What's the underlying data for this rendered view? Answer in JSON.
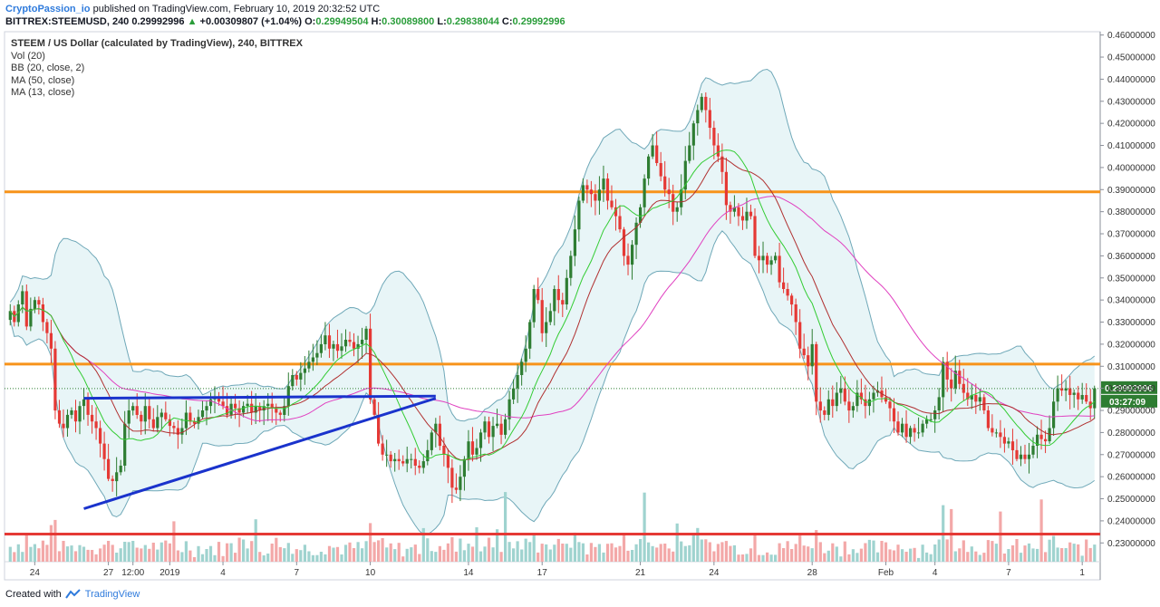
{
  "header": {
    "author": "CryptoPassion_io",
    "published": "published on TradingView.com, February 10, 2019 20:32:52 UTC"
  },
  "ohlc": {
    "symbol": "BITTREX:STEEMUSD, 240",
    "last": "0.29992996",
    "change_arrow": "▲",
    "change": "+0.00309807 (+1.04%)",
    "o_label": "O:",
    "o": "0.29949504",
    "h_label": "H:",
    "h": "0.30089800",
    "l_label": "L:",
    "l": "0.29838044",
    "c_label": "C:",
    "c": "0.29992996"
  },
  "indicators": {
    "title": "STEEM / US Dollar (calculated by TradingView), 240, BITTREX",
    "list": [
      "Vol (20)",
      "BB (20, close, 2)",
      "MA (50, close)",
      "MA (13, close)"
    ]
  },
  "footer": {
    "created": "Created with",
    "brand": "TradingView"
  },
  "colors": {
    "up": "#2e7d32",
    "down": "#e53935",
    "bb": "#6fa8b8",
    "bb_fill": "#e8f5f7",
    "ma50": "#e040c0",
    "ma13": "#33cc33",
    "ma_mid": "#b03030",
    "support": "#f7931a",
    "resistance_low": "#e53935",
    "trend": "#1a33cc",
    "price_tag": "#2e7d32"
  },
  "chart_data": {
    "type": "candlestick",
    "ylim": [
      0.2215,
      0.4615
    ],
    "y_ticks": [
      "0.46000000",
      "0.45000000",
      "0.44000000",
      "0.43000000",
      "0.42000000",
      "0.41000000",
      "0.40000000",
      "0.39000000",
      "0.38000000",
      "0.37000000",
      "0.36000000",
      "0.35000000",
      "0.34000000",
      "0.33000000",
      "0.32000000",
      "0.31000000",
      "0.30000000",
      "0.29000000",
      "0.28000000",
      "0.27000000",
      "0.26000000",
      "0.25000000",
      "0.24000000",
      "0.23000000"
    ],
    "x_ticks": [
      {
        "label": "24",
        "i": 6
      },
      {
        "label": "27",
        "i": 24
      },
      {
        "label": "12:00",
        "i": 30
      },
      {
        "label": "2019",
        "i": 39
      },
      {
        "label": "4",
        "i": 52
      },
      {
        "label": "7",
        "i": 70
      },
      {
        "label": "10",
        "i": 88
      },
      {
        "label": "14",
        "i": 112
      },
      {
        "label": "17",
        "i": 130
      },
      {
        "label": "21",
        "i": 154
      },
      {
        "label": "24",
        "i": 172
      },
      {
        "label": "28",
        "i": 196
      },
      {
        "label": "Feb",
        "i": 214
      },
      {
        "label": "4",
        "i": 226
      },
      {
        "label": "7",
        "i": 244
      },
      {
        "label": "1",
        "i": 262
      }
    ],
    "current_price_tag": "0.29992996",
    "countdown_tag": "03:27:09",
    "current_price": 0.29993,
    "horizontal_lines": [
      {
        "name": "resistance",
        "price": 0.389,
        "color": "support"
      },
      {
        "name": "mid",
        "price": 0.311,
        "color": "support"
      },
      {
        "name": "low",
        "price": 0.234,
        "color": "resistance_low"
      }
    ],
    "trend_lines": [
      {
        "from": [
          18,
          0.2455
        ],
        "to": [
          104,
          0.2955
        ]
      },
      {
        "from": [
          18,
          0.2955
        ],
        "to": [
          104,
          0.2965
        ]
      }
    ],
    "closes": [
      0.335,
      0.33,
      0.338,
      0.344,
      0.328,
      0.336,
      0.34,
      0.338,
      0.33,
      0.325,
      0.318,
      0.29,
      0.284,
      0.282,
      0.288,
      0.29,
      0.285,
      0.292,
      0.295,
      0.288,
      0.285,
      0.282,
      0.275,
      0.268,
      0.259,
      0.258,
      0.262,
      0.265,
      0.284,
      0.29,
      0.292,
      0.288,
      0.285,
      0.292,
      0.286,
      0.282,
      0.287,
      0.289,
      0.286,
      0.283,
      0.282,
      0.279,
      0.282,
      0.289,
      0.285,
      0.284,
      0.287,
      0.29,
      0.292,
      0.295,
      0.296,
      0.294,
      0.292,
      0.288,
      0.293,
      0.291,
      0.289,
      0.292,
      0.293,
      0.289,
      0.292,
      0.29,
      0.292,
      0.293,
      0.291,
      0.289,
      0.288,
      0.292,
      0.301,
      0.306,
      0.304,
      0.307,
      0.309,
      0.312,
      0.314,
      0.316,
      0.32,
      0.324,
      0.318,
      0.32,
      0.317,
      0.319,
      0.322,
      0.321,
      0.318,
      0.32,
      0.322,
      0.327,
      0.295,
      0.288,
      0.275,
      0.27,
      0.27,
      0.267,
      0.268,
      0.267,
      0.266,
      0.268,
      0.268,
      0.265,
      0.264,
      0.267,
      0.272,
      0.28,
      0.284,
      0.274,
      0.27,
      0.264,
      0.255,
      0.254,
      0.26,
      0.268,
      0.276,
      0.27,
      0.273,
      0.28,
      0.285,
      0.278,
      0.283,
      0.284,
      0.279,
      0.286,
      0.295,
      0.3,
      0.306,
      0.312,
      0.318,
      0.33,
      0.345,
      0.34,
      0.325,
      0.33,
      0.335,
      0.345,
      0.34,
      0.338,
      0.35,
      0.36,
      0.372,
      0.385,
      0.392,
      0.39,
      0.388,
      0.385,
      0.39,
      0.395,
      0.385,
      0.382,
      0.378,
      0.372,
      0.36,
      0.356,
      0.365,
      0.375,
      0.382,
      0.395,
      0.405,
      0.41,
      0.402,
      0.396,
      0.39,
      0.388,
      0.38,
      0.382,
      0.39,
      0.403,
      0.41,
      0.42,
      0.426,
      0.432,
      0.426,
      0.418,
      0.41,
      0.405,
      0.398,
      0.383,
      0.38,
      0.382,
      0.378,
      0.376,
      0.38,
      0.378,
      0.36,
      0.358,
      0.36,
      0.356,
      0.358,
      0.36,
      0.348,
      0.345,
      0.342,
      0.338,
      0.33,
      0.318,
      0.315,
      0.31,
      0.32,
      0.294,
      0.29,
      0.288,
      0.295,
      0.292,
      0.298,
      0.3,
      0.294,
      0.29,
      0.292,
      0.298,
      0.295,
      0.292,
      0.295,
      0.298,
      0.299,
      0.296,
      0.294,
      0.291,
      0.285,
      0.28,
      0.284,
      0.278,
      0.282,
      0.28,
      0.28,
      0.284,
      0.286,
      0.286,
      0.29,
      0.296,
      0.312,
      0.304,
      0.3,
      0.308,
      0.302,
      0.298,
      0.295,
      0.297,
      0.294,
      0.296,
      0.29,
      0.282,
      0.28,
      0.28,
      0.278,
      0.275,
      0.276,
      0.272,
      0.268,
      0.27,
      0.268,
      0.27,
      0.274,
      0.279,
      0.277,
      0.276,
      0.282,
      0.294,
      0.3,
      0.299,
      0.3,
      0.297,
      0.298,
      0.295,
      0.297,
      0.294,
      0.291,
      0.3
    ]
  }
}
